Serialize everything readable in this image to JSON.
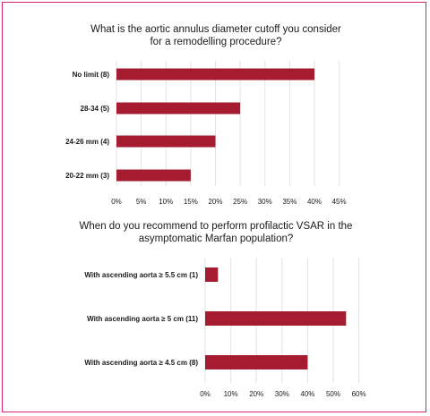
{
  "chart_data": [
    {
      "type": "bar",
      "orientation": "horizontal",
      "title_lines": [
        "What is the aortic annulus diameter cutoff you consider",
        "for a remodelling procedure?"
      ],
      "categories": [
        "No limit (8)",
        "28-34 (5)",
        "24-26 mm (4)",
        "20-22 mm (3)"
      ],
      "values": [
        40,
        25,
        20,
        15
      ],
      "xlim": [
        0,
        45
      ],
      "ticks": [
        0,
        5,
        10,
        15,
        20,
        25,
        30,
        35,
        40,
        45
      ],
      "tick_labels": [
        "0%",
        "5%",
        "10%",
        "15%",
        "20%",
        "25%",
        "30%",
        "35%",
        "40%",
        "45%"
      ],
      "grid": true,
      "bar_color": "#a51c30"
    },
    {
      "type": "bar",
      "orientation": "horizontal",
      "title_lines": [
        "When do you recommend to perform profilactic VSAR in the",
        "asymptomatic Marfan population?"
      ],
      "categories": [
        "With ascending aorta ≥ 5.5 cm (1)",
        "With ascending aorta ≥ 5 cm (11)",
        "With ascending aorta ≥ 4.5 cm (8)"
      ],
      "values": [
        5,
        55,
        40
      ],
      "xlim": [
        0,
        60
      ],
      "ticks": [
        0,
        10,
        20,
        30,
        40,
        50,
        60
      ],
      "tick_labels": [
        "0%",
        "10%",
        "20%",
        "30%",
        "40%",
        "50%",
        "60%"
      ],
      "grid": true,
      "bar_color": "#a51c30"
    }
  ],
  "frame_color": "#d8256f"
}
